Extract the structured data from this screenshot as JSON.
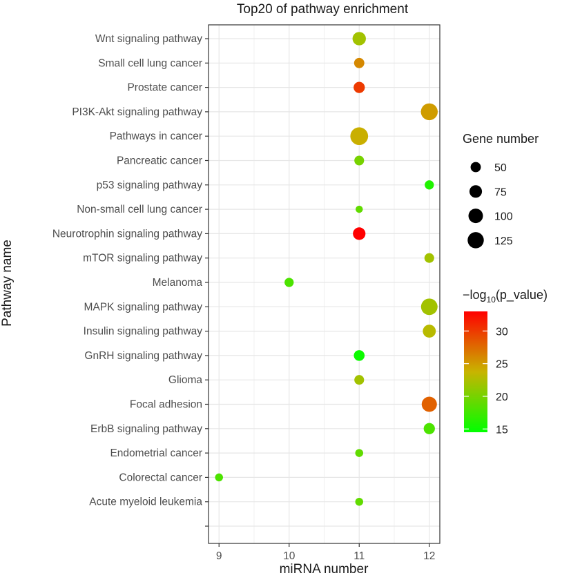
{
  "chart_data": {
    "type": "scatter",
    "title": "Top20 of pathway enrichment",
    "xlabel": "miRNA number",
    "ylabel": "Pathway name",
    "xlim": [
      8.85,
      12.15
    ],
    "x_ticks": [
      9,
      10,
      11,
      12
    ],
    "grid": true,
    "categories": [
      "Wnt signaling pathway",
      "Small cell lung cancer",
      "Prostate cancer",
      "PI3K-Akt signaling pathway",
      "Pathways in cancer",
      "Pancreatic cancer",
      "p53 signaling pathway",
      "Non-small cell lung cancer",
      "Neurotrophin signaling pathway",
      "mTOR signaling pathway",
      "Melanoma",
      "MAPK signaling pathway",
      "Insulin signaling pathway",
      "GnRH signaling pathway",
      "Glioma",
      "Focal adhesion",
      "ErbB signaling pathway",
      "Endometrial cancer",
      "Colorectal cancer",
      "Acute myeloid leukemia",
      ""
    ],
    "points": [
      {
        "pathway": "Wnt signaling pathway",
        "mirna_number": 11,
        "gene_number": 85,
        "neg_log10_p": 22
      },
      {
        "pathway": "Small cell lung cancer",
        "mirna_number": 11,
        "gene_number": 50,
        "neg_log10_p": 26
      },
      {
        "pathway": "Prostate cancer",
        "mirna_number": 11,
        "gene_number": 60,
        "neg_log10_p": 30
      },
      {
        "pathway": "PI3K-Akt signaling pathway",
        "mirna_number": 12,
        "gene_number": 135,
        "neg_log10_p": 25
      },
      {
        "pathway": "Pathways in cancer",
        "mirna_number": 11,
        "gene_number": 150,
        "neg_log10_p": 24
      },
      {
        "pathway": "Pancreatic cancer",
        "mirna_number": 11,
        "gene_number": 45,
        "neg_log10_p": 20
      },
      {
        "pathway": "p53 signaling pathway",
        "mirna_number": 12,
        "gene_number": 40,
        "neg_log10_p": 16
      },
      {
        "pathway": "Non-small cell lung cancer",
        "mirna_number": 11,
        "gene_number": 25,
        "neg_log10_p": 19
      },
      {
        "pathway": "Neurotrophin signaling pathway",
        "mirna_number": 11,
        "gene_number": 75,
        "neg_log10_p": 33
      },
      {
        "pathway": "mTOR signaling pathway",
        "mirna_number": 12,
        "gene_number": 45,
        "neg_log10_p": 22
      },
      {
        "pathway": "Melanoma",
        "mirna_number": 10,
        "gene_number": 40,
        "neg_log10_p": 18
      },
      {
        "pathway": "MAPK signaling pathway",
        "mirna_number": 12,
        "gene_number": 130,
        "neg_log10_p": 22
      },
      {
        "pathway": "Insulin signaling pathway",
        "mirna_number": 12,
        "gene_number": 80,
        "neg_log10_p": 23
      },
      {
        "pathway": "GnRH signaling pathway",
        "mirna_number": 11,
        "gene_number": 55,
        "neg_log10_p": 15
      },
      {
        "pathway": "Glioma",
        "mirna_number": 11,
        "gene_number": 45,
        "neg_log10_p": 22
      },
      {
        "pathway": "Focal adhesion",
        "mirna_number": 12,
        "gene_number": 110,
        "neg_log10_p": 28
      },
      {
        "pathway": "ErbB signaling pathway",
        "mirna_number": 12,
        "gene_number": 60,
        "neg_log10_p": 18
      },
      {
        "pathway": "Endometrial cancer",
        "mirna_number": 11,
        "gene_number": 30,
        "neg_log10_p": 19
      },
      {
        "pathway": "Colorectal cancer",
        "mirna_number": 9,
        "gene_number": 30,
        "neg_log10_p": 18
      },
      {
        "pathway": "Acute myeloid leukemia",
        "mirna_number": 11,
        "gene_number": 30,
        "neg_log10_p": 19
      }
    ],
    "size_legend": {
      "title": "Gene number",
      "values": [
        50,
        75,
        100,
        125
      ]
    },
    "color_legend": {
      "title_prefix": "−log",
      "title_sub": "10",
      "title_suffix": "(p_value)",
      "ticks": [
        15,
        20,
        25,
        30
      ],
      "range": [
        14.5,
        33
      ],
      "low_color": "#00ff00",
      "mid_color": "#c8b400",
      "high_color": "#ff0000"
    }
  }
}
